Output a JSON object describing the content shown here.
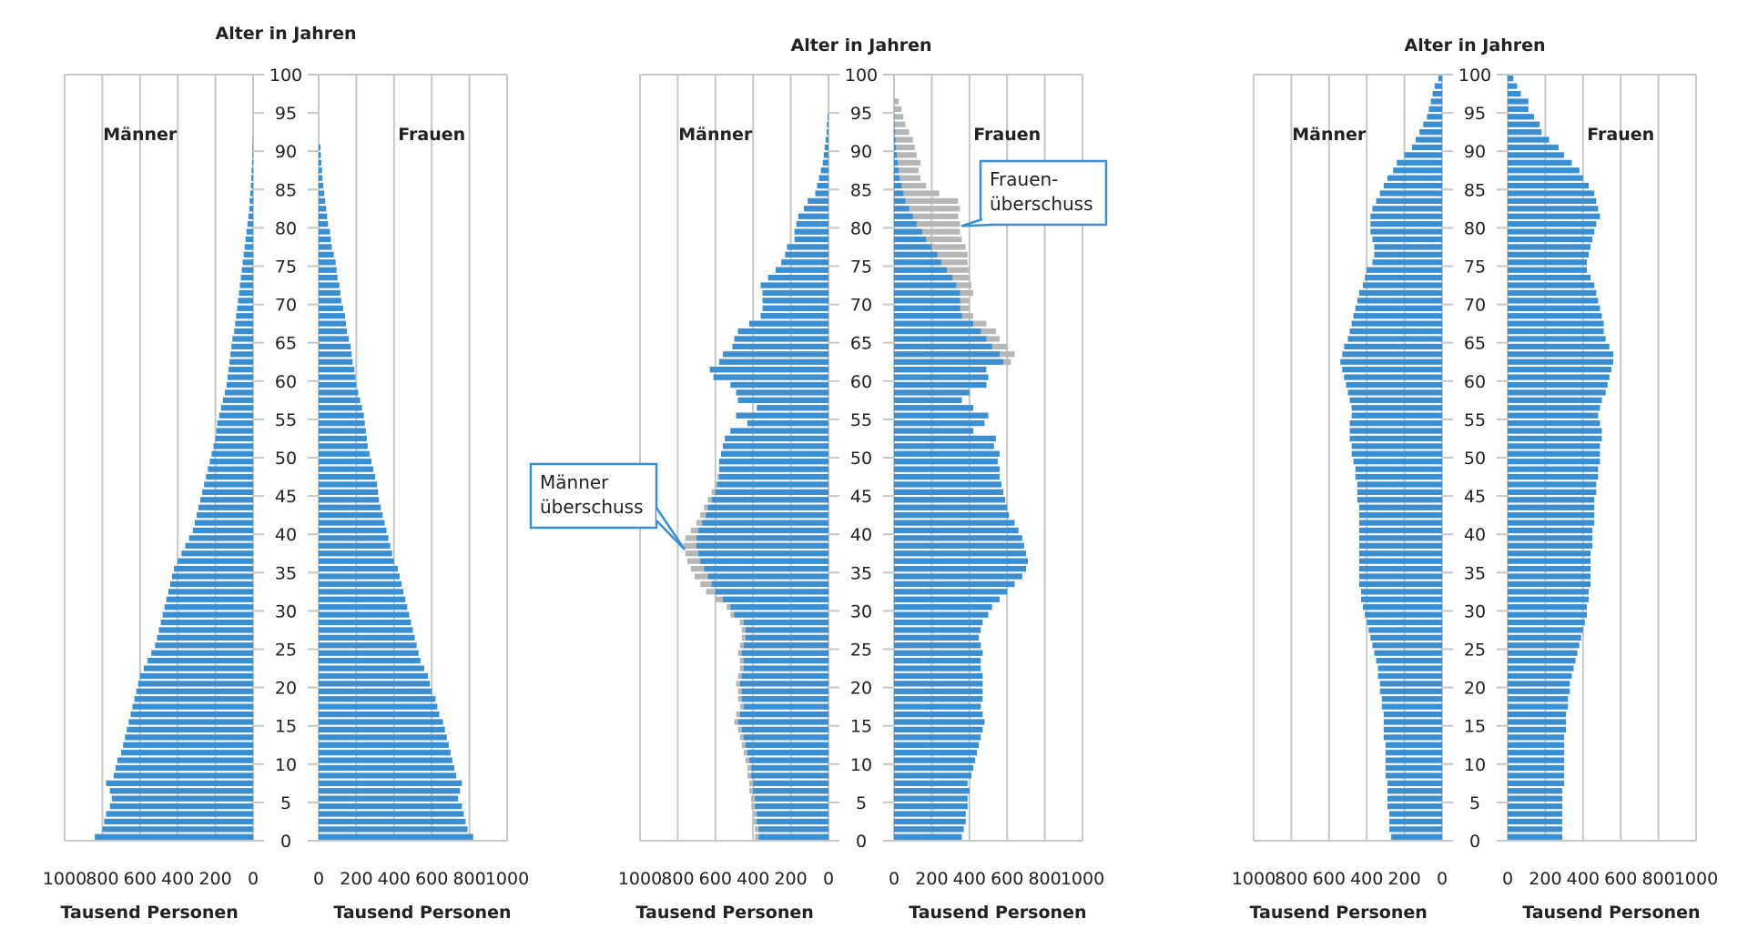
{
  "chart_data": [
    {
      "type": "bar",
      "orientation": "horizontal-population-pyramid",
      "title": "Alter in Jahren",
      "age_ticks": [
        0,
        5,
        10,
        15,
        20,
        25,
        30,
        35,
        40,
        45,
        50,
        55,
        60,
        65,
        70,
        75,
        80,
        85,
        90,
        95,
        100
      ],
      "x_ticks_men": [
        "1000",
        "800",
        "600",
        "400",
        "200",
        "0"
      ],
      "x_ticks_women": [
        "0",
        "200",
        "400",
        "600",
        "800",
        "1000"
      ],
      "xlim": [
        0,
        1000
      ],
      "ylim": [
        0,
        100
      ],
      "grid": true,
      "xlabel_men": "Tausend Personen",
      "xlabel_women": "Tausend Personen",
      "group_labels": [
        "Männer",
        "Frauen"
      ],
      "series": [
        {
          "name": "Männer",
          "age_start": 0,
          "age_end": 91,
          "colour": "#3a8fd2",
          "values": [
            840,
            800,
            790,
            780,
            760,
            750,
            760,
            780,
            740,
            730,
            720,
            700,
            690,
            680,
            670,
            660,
            650,
            640,
            630,
            620,
            610,
            600,
            580,
            560,
            540,
            520,
            510,
            500,
            490,
            480,
            470,
            460,
            450,
            440,
            430,
            420,
            400,
            380,
            360,
            340,
            320,
            310,
            300,
            290,
            280,
            270,
            260,
            250,
            240,
            230,
            220,
            210,
            200,
            195,
            190,
            180,
            170,
            160,
            150,
            140,
            135,
            130,
            125,
            120,
            115,
            110,
            100,
            95,
            90,
            85,
            80,
            75,
            70,
            65,
            60,
            55,
            50,
            45,
            40,
            35,
            30,
            25,
            20,
            18,
            15,
            12,
            10,
            8,
            6,
            4,
            3,
            2
          ]
        },
        {
          "name": "Frauen",
          "age_start": 0,
          "age_end": 90,
          "colour": "#3a8fd2",
          "values": [
            820,
            790,
            780,
            770,
            760,
            740,
            750,
            760,
            730,
            720,
            710,
            700,
            690,
            680,
            670,
            660,
            640,
            630,
            620,
            600,
            590,
            580,
            560,
            540,
            530,
            520,
            510,
            500,
            490,
            480,
            470,
            460,
            450,
            440,
            430,
            420,
            400,
            390,
            380,
            370,
            360,
            350,
            340,
            330,
            320,
            315,
            310,
            300,
            290,
            280,
            270,
            260,
            255,
            250,
            245,
            240,
            230,
            220,
            210,
            200,
            195,
            190,
            180,
            175,
            170,
            160,
            150,
            145,
            140,
            130,
            120,
            115,
            110,
            100,
            95,
            90,
            80,
            70,
            65,
            60,
            50,
            45,
            40,
            35,
            30,
            25,
            20,
            18,
            15,
            12,
            10
          ]
        }
      ]
    },
    {
      "type": "bar",
      "orientation": "horizontal-population-pyramid",
      "title": "Alter in Jahren",
      "age_ticks": [
        0,
        5,
        10,
        15,
        20,
        25,
        30,
        35,
        40,
        45,
        50,
        55,
        60,
        65,
        70,
        75,
        80,
        85,
        90,
        95,
        100
      ],
      "x_ticks_men": [
        "1000",
        "800",
        "600",
        "400",
        "200",
        "0"
      ],
      "x_ticks_women": [
        "0",
        "200",
        "400",
        "600",
        "800",
        "1000"
      ],
      "xlim": [
        0,
        1000
      ],
      "ylim": [
        0,
        100
      ],
      "grid": true,
      "xlabel_men": "Tausend Personen",
      "xlabel_women": "Tausend Personen",
      "group_labels": [
        "Männer",
        "Frauen"
      ],
      "annotations": [
        {
          "text_lines": [
            "Männer",
            "überschuss"
          ],
          "side": "left",
          "points_to_age": 38
        },
        {
          "text_lines": [
            "Frauen-",
            "überschuss"
          ],
          "side": "right",
          "points_to_age": 80
        }
      ],
      "series": [
        {
          "name": "Männer",
          "age_start": 0,
          "age_end": 94,
          "colour": "#3a8fd2",
          "values": [
            370,
            370,
            380,
            380,
            390,
            390,
            400,
            400,
            410,
            410,
            420,
            430,
            440,
            450,
            460,
            480,
            470,
            450,
            460,
            460,
            470,
            460,
            450,
            450,
            460,
            450,
            440,
            440,
            450,
            500,
            520,
            560,
            600,
            620,
            640,
            660,
            680,
            690,
            700,
            700,
            690,
            670,
            650,
            640,
            620,
            600,
            590,
            580,
            580,
            580,
            570,
            560,
            550,
            520,
            430,
            490,
            380,
            480,
            490,
            520,
            610,
            630,
            580,
            560,
            510,
            500,
            480,
            420,
            360,
            350,
            350,
            350,
            360,
            320,
            280,
            250,
            230,
            220,
            180,
            180,
            170,
            160,
            130,
            110,
            70,
            60,
            50,
            40,
            30,
            25,
            20,
            15,
            10,
            8,
            5
          ]
        },
        {
          "name": "Männer-Überschuss",
          "age_start": 0,
          "age_end": 94,
          "colour": "#b4b7b6",
          "values": [
            390,
            390,
            400,
            400,
            410,
            410,
            420,
            420,
            430,
            430,
            440,
            450,
            460,
            470,
            480,
            500,
            490,
            470,
            480,
            480,
            490,
            480,
            470,
            470,
            480,
            470,
            460,
            460,
            470,
            520,
            540,
            600,
            650,
            680,
            710,
            730,
            750,
            760,
            770,
            760,
            730,
            700,
            680,
            660,
            640,
            620,
            600,
            590,
            580,
            580,
            570,
            560,
            550,
            520,
            430,
            490,
            380,
            480,
            490,
            520,
            610,
            630,
            580,
            560,
            510,
            500,
            480,
            420,
            360,
            350,
            350,
            350,
            360,
            320,
            280,
            250,
            230,
            220,
            180,
            180,
            170,
            160,
            130,
            110,
            70,
            60,
            50,
            40,
            30,
            25,
            20,
            15,
            10,
            8,
            5
          ]
        },
        {
          "name": "Frauen",
          "age_start": 0,
          "age_end": 96,
          "colour": "#3a8fd2",
          "values": [
            360,
            370,
            380,
            380,
            390,
            390,
            400,
            390,
            410,
            420,
            430,
            440,
            450,
            460,
            470,
            480,
            470,
            460,
            470,
            470,
            470,
            470,
            460,
            460,
            470,
            460,
            450,
            460,
            470,
            500,
            520,
            560,
            600,
            640,
            680,
            700,
            710,
            700,
            690,
            680,
            660,
            640,
            610,
            600,
            590,
            580,
            570,
            560,
            560,
            550,
            560,
            530,
            540,
            420,
            480,
            500,
            420,
            360,
            400,
            490,
            500,
            490,
            580,
            560,
            520,
            490,
            460,
            420,
            360,
            350,
            350,
            350,
            330,
            310,
            280,
            250,
            230,
            200,
            170,
            150,
            120,
            100,
            80,
            60,
            50,
            40,
            30,
            25,
            20,
            15,
            10,
            8,
            5,
            3,
            2,
            1,
            1
          ]
        },
        {
          "name": "Frauen-Überschuss",
          "age_start": 0,
          "age_end": 96,
          "colour": "#b4b7b6",
          "values": [
            360,
            370,
            380,
            380,
            390,
            390,
            400,
            390,
            410,
            420,
            430,
            440,
            450,
            460,
            470,
            480,
            470,
            460,
            470,
            470,
            470,
            470,
            460,
            460,
            470,
            460,
            450,
            460,
            470,
            500,
            520,
            560,
            600,
            640,
            680,
            700,
            710,
            700,
            690,
            680,
            660,
            640,
            610,
            600,
            590,
            580,
            570,
            560,
            560,
            550,
            560,
            530,
            540,
            420,
            480,
            500,
            420,
            360,
            400,
            490,
            500,
            490,
            620,
            640,
            600,
            560,
            540,
            490,
            420,
            400,
            400,
            420,
            410,
            400,
            400,
            390,
            390,
            380,
            360,
            350,
            350,
            340,
            350,
            340,
            240,
            170,
            140,
            130,
            140,
            120,
            110,
            100,
            80,
            60,
            50,
            40,
            25
          ]
        }
      ]
    },
    {
      "type": "bar",
      "orientation": "horizontal-population-pyramid",
      "title": "Alter in Jahren",
      "age_ticks": [
        0,
        5,
        10,
        15,
        20,
        25,
        30,
        35,
        40,
        45,
        50,
        55,
        60,
        65,
        70,
        75,
        80,
        85,
        90,
        95,
        100
      ],
      "x_ticks_men": [
        "1000",
        "800",
        "600",
        "400",
        "200",
        "0"
      ],
      "x_ticks_women": [
        "0",
        "200",
        "400",
        "600",
        "800",
        "1000"
      ],
      "xlim": [
        0,
        1000
      ],
      "ylim": [
        0,
        100
      ],
      "grid": true,
      "xlabel_men": "Tausend Personen",
      "xlabel_women": "Tausend Personen",
      "group_labels": [
        "Männer",
        "Frauen"
      ],
      "series": [
        {
          "name": "Männer",
          "age_start": 0,
          "age_end": 99,
          "colour": "#3a8fd2",
          "values": [
            270,
            280,
            280,
            280,
            290,
            290,
            290,
            290,
            300,
            300,
            300,
            300,
            300,
            310,
            310,
            310,
            310,
            320,
            320,
            330,
            330,
            340,
            340,
            350,
            360,
            370,
            380,
            390,
            400,
            410,
            420,
            430,
            430,
            440,
            440,
            440,
            440,
            440,
            440,
            440,
            440,
            440,
            440,
            440,
            450,
            450,
            450,
            460,
            460,
            470,
            480,
            480,
            490,
            490,
            490,
            480,
            480,
            490,
            500,
            510,
            520,
            530,
            540,
            530,
            520,
            500,
            490,
            480,
            470,
            460,
            450,
            440,
            420,
            410,
            400,
            370,
            360,
            360,
            370,
            380,
            380,
            380,
            370,
            350,
            330,
            310,
            290,
            260,
            240,
            200,
            160,
            140,
            120,
            100,
            80,
            70,
            60,
            50,
            40,
            20
          ]
        },
        {
          "name": "Frauen",
          "age_start": 0,
          "age_end": 99,
          "colour": "#3a8fd2",
          "values": [
            290,
            290,
            290,
            290,
            290,
            290,
            290,
            300,
            300,
            300,
            300,
            300,
            300,
            300,
            310,
            310,
            310,
            320,
            320,
            330,
            330,
            340,
            350,
            360,
            370,
            380,
            390,
            400,
            410,
            420,
            420,
            430,
            430,
            440,
            440,
            440,
            440,
            440,
            450,
            450,
            450,
            460,
            460,
            460,
            460,
            470,
            470,
            480,
            480,
            490,
            490,
            490,
            500,
            500,
            490,
            480,
            490,
            500,
            520,
            530,
            540,
            550,
            560,
            560,
            540,
            520,
            510,
            510,
            500,
            490,
            480,
            470,
            460,
            440,
            420,
            420,
            430,
            440,
            450,
            460,
            470,
            490,
            480,
            470,
            460,
            430,
            400,
            380,
            340,
            300,
            270,
            220,
            180,
            170,
            140,
            110,
            110,
            70,
            50,
            30
          ]
        }
      ]
    }
  ]
}
